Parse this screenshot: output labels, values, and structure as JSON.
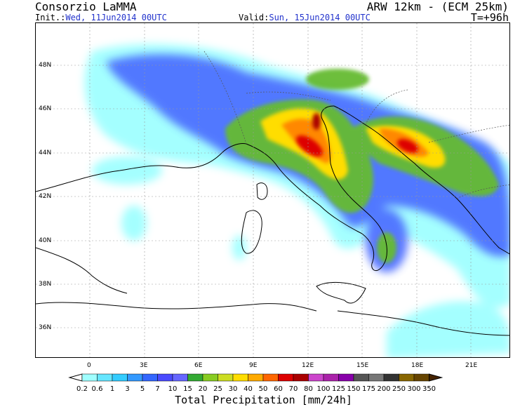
{
  "header": {
    "left_title": "Consorzio LaMMA",
    "right_title": "ARW 12km - (ECM 25km)",
    "init_label": "Init.:",
    "init_value": "Wed, 11Jun2014 00UTC",
    "valid_label": "Valid:",
    "valid_value": "Sun, 15Jun2014 00UTC",
    "lead_time": "T=+96h"
  },
  "map": {
    "lat_labels": [
      "48N",
      "46N",
      "44N",
      "42N",
      "40N",
      "38N",
      "36N"
    ],
    "lon_labels": [
      "0",
      "3E",
      "6E",
      "9E",
      "12E",
      "15E",
      "18E",
      "21E"
    ],
    "land_color": "#ffffff",
    "sea_color": "#ffffff",
    "coast_color": "#000000"
  },
  "legend": {
    "title": "Total Precipitation [mm/24h]",
    "values": [
      "0.2",
      "0.6",
      "1",
      "3",
      "5",
      "7",
      "10",
      "15",
      "20",
      "25",
      "30",
      "40",
      "50",
      "60",
      "70",
      "80",
      "100",
      "125",
      "150",
      "175",
      "200",
      "250",
      "300",
      "350"
    ],
    "colors": [
      "#a0ffff",
      "#66e6ff",
      "#33ccff",
      "#3399ff",
      "#3366ff",
      "#4a4aff",
      "#6666ff",
      "#33aa33",
      "#88cc22",
      "#ccdd22",
      "#ffdd00",
      "#ffaa00",
      "#ff6600",
      "#dd0000",
      "#aa0000",
      "#cc44cc",
      "#aa22aa",
      "#8800aa",
      "#555555",
      "#777777",
      "#333333",
      "#886600",
      "#664400",
      "#442200"
    ]
  }
}
